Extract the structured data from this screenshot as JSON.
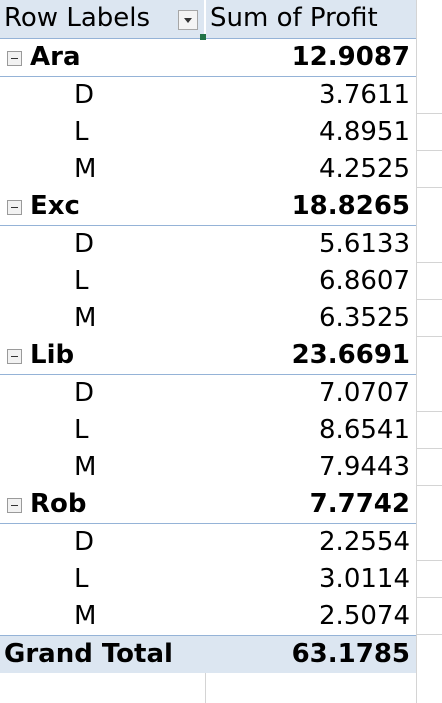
{
  "header": {
    "row_labels": "Row Labels",
    "value_header": "Sum of Profit"
  },
  "groups": [
    {
      "label": "Ara",
      "total": "12.9087",
      "items": [
        {
          "label": "D",
          "value": "3.7611"
        },
        {
          "label": "L",
          "value": "4.8951"
        },
        {
          "label": "M",
          "value": "4.2525"
        }
      ]
    },
    {
      "label": "Exc",
      "total": "18.8265",
      "items": [
        {
          "label": "D",
          "value": "5.6133"
        },
        {
          "label": "L",
          "value": "6.8607"
        },
        {
          "label": "M",
          "value": "6.3525"
        }
      ]
    },
    {
      "label": "Lib",
      "total": "23.6691",
      "items": [
        {
          "label": "D",
          "value": "7.0707"
        },
        {
          "label": "L",
          "value": "8.6541"
        },
        {
          "label": "M",
          "value": "7.9443"
        }
      ]
    },
    {
      "label": "Rob",
      "total": "7.7742",
      "items": [
        {
          "label": "D",
          "value": "2.2554"
        },
        {
          "label": "L",
          "value": "3.0114"
        },
        {
          "label": "M",
          "value": "2.5074"
        }
      ]
    }
  ],
  "grand_total": {
    "label": "Grand Total",
    "value": "63.1785"
  },
  "colors": {
    "header_fill": "#dce6f1",
    "border": "#95b3d7",
    "gridline": "#d4d4d4",
    "active_cell": "#217346"
  }
}
